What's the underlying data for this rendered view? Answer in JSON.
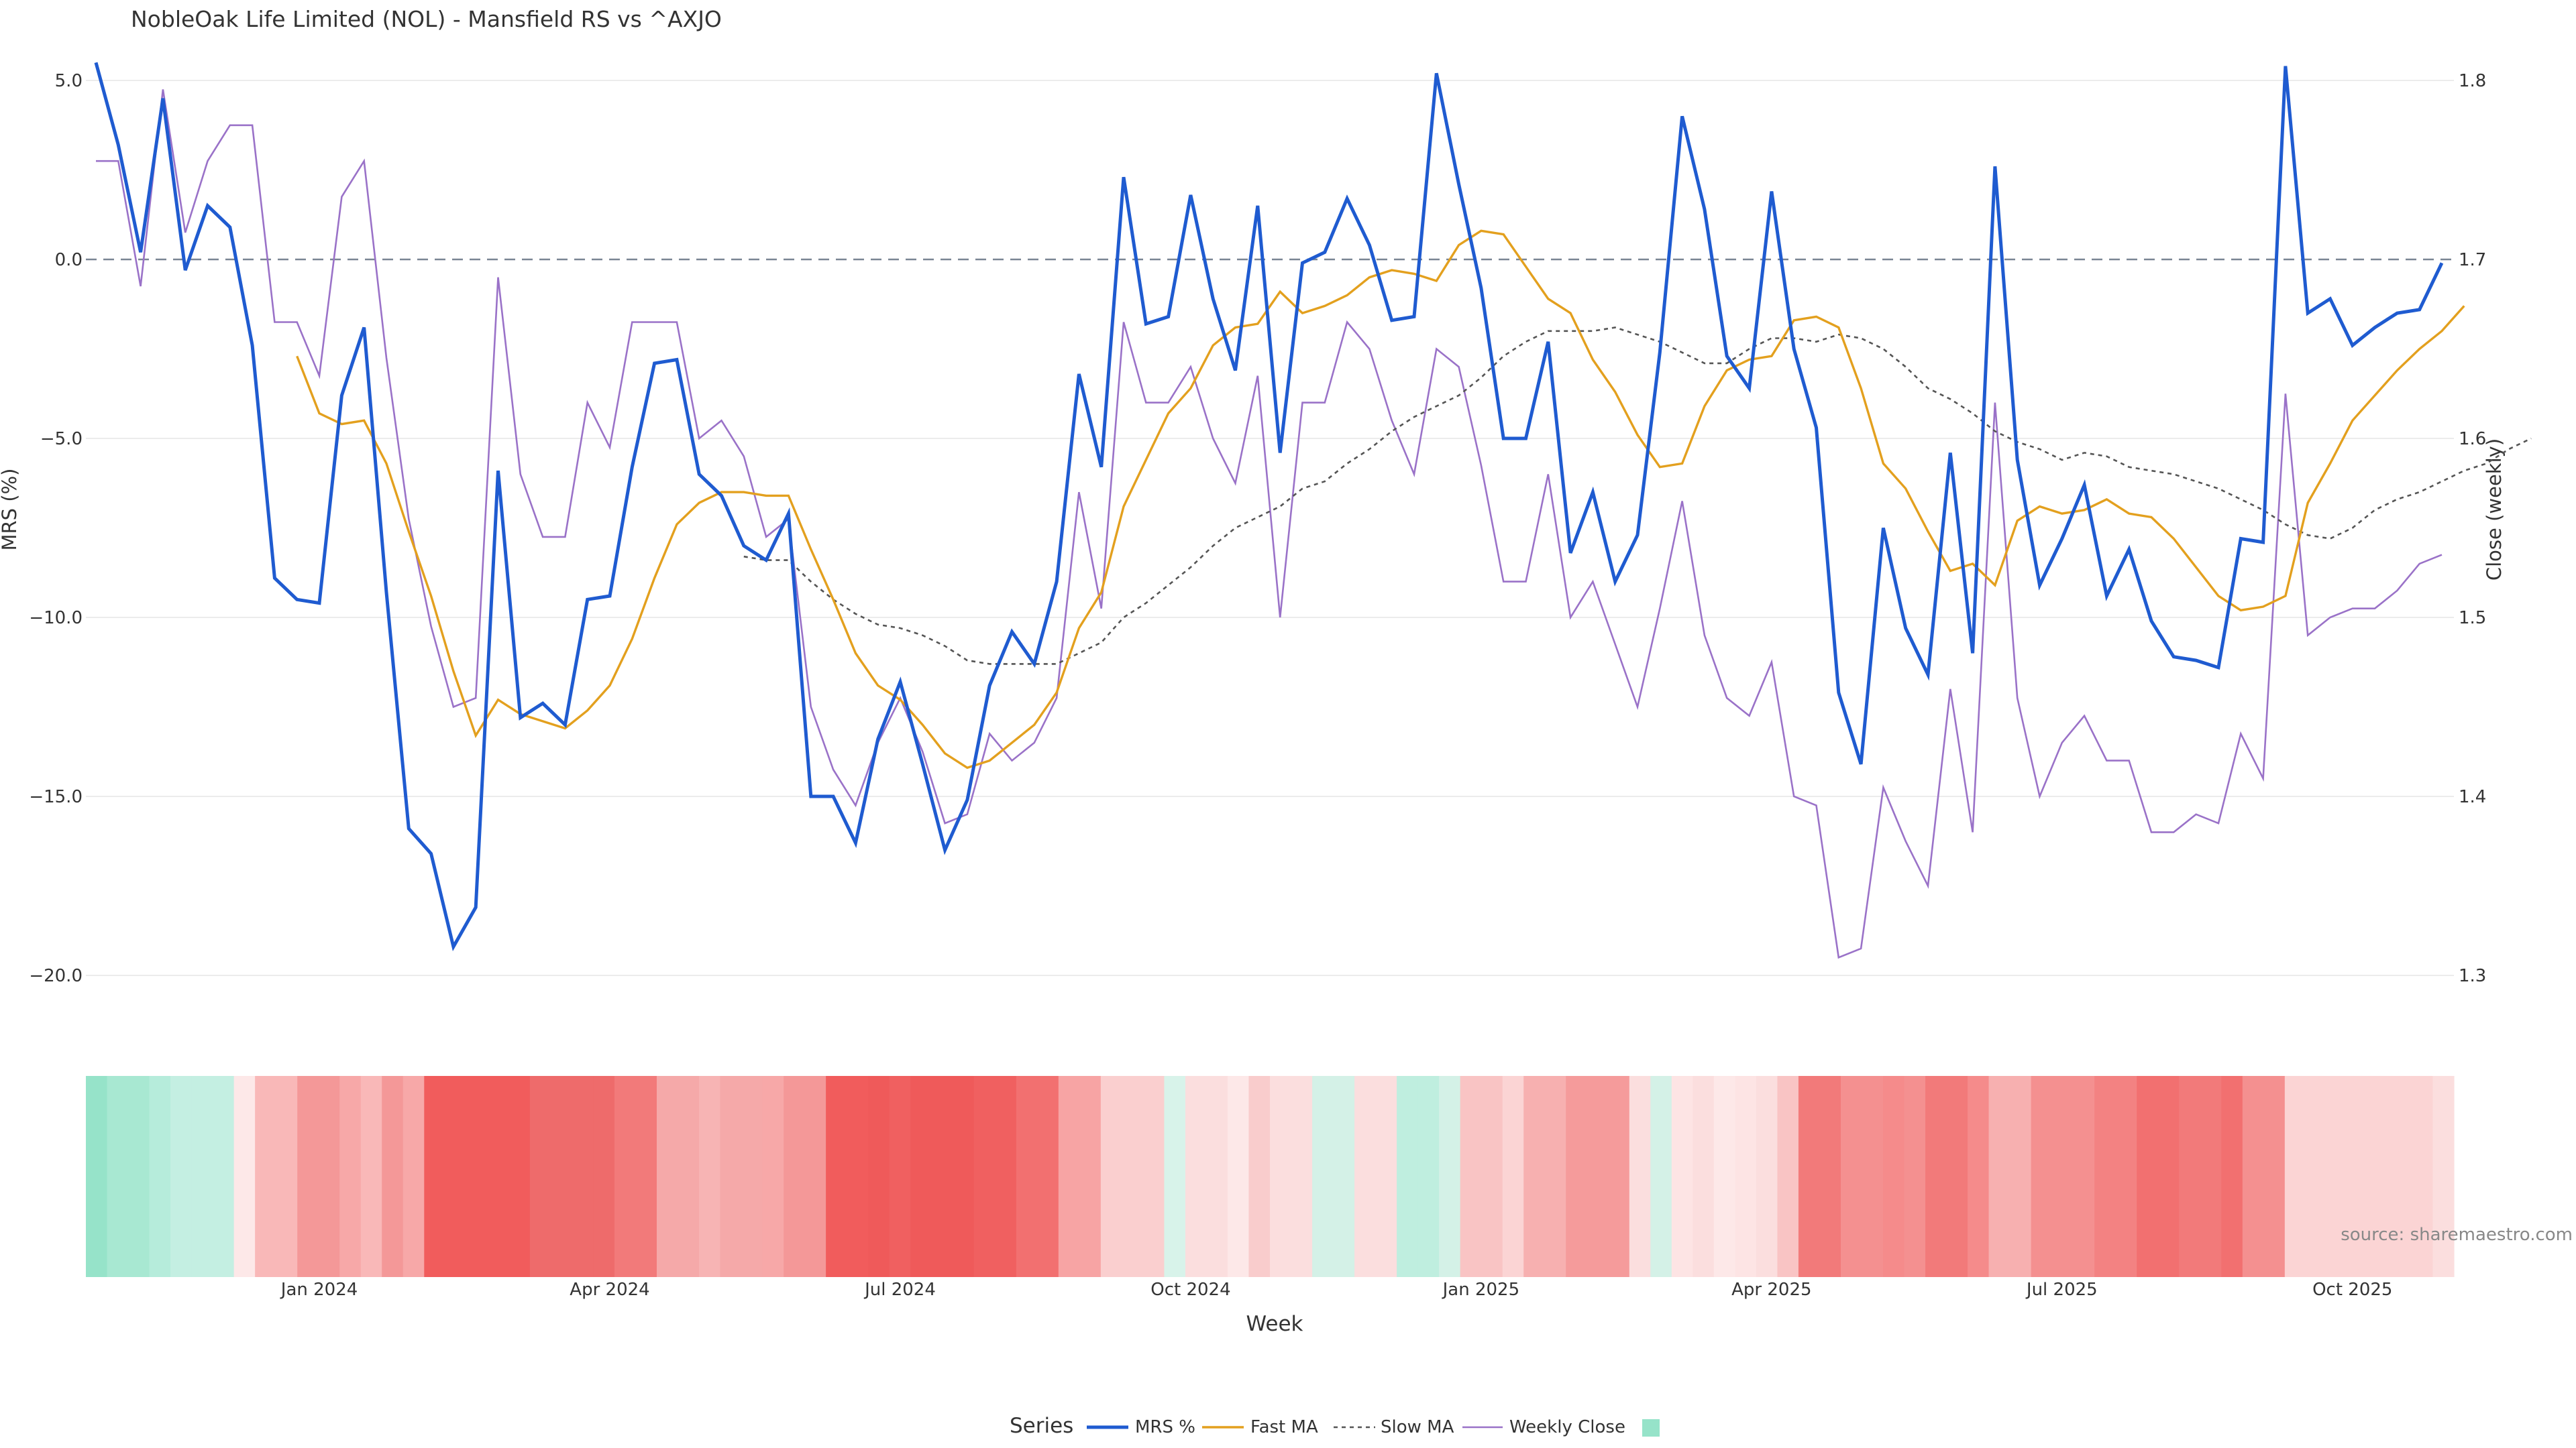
{
  "colors": {
    "mrs": "#1f5bd0",
    "fast": "#e3a01e",
    "slow": "#555555",
    "close": "#9a72c8",
    "zero": "#7a8594",
    "grid": "#ececec",
    "text": "#333333",
    "source": "#888888"
  },
  "chart_data": {
    "type": "line",
    "title": "NobleOak Life Limited (NOL) - Mansfield RS vs ^AXJO",
    "xlabel": "Week",
    "ylabel": "MRS (%)",
    "y2label": "Close (weekly)",
    "ylim": [
      -20.0,
      5.0
    ],
    "y2lim": [
      1.3,
      1.8
    ],
    "yticks": [
      "5.0",
      "0.0",
      "−5.0",
      "−10.0",
      "−15.0",
      "−20.0"
    ],
    "y2ticks": [
      "1.8",
      "1.7",
      "1.6",
      "1.5",
      "1.4",
      "1.3"
    ],
    "xticks": [
      "Jan 2024",
      "Apr 2024",
      "Jul 2024",
      "Oct 2024",
      "Jan 2025",
      "Apr 2025",
      "Jul 2025",
      "Oct 2025"
    ],
    "xtick_weeks": [
      10,
      23,
      36,
      49,
      62,
      75,
      88,
      101
    ],
    "zero_line": 0,
    "source": "source: sharemaestro.com",
    "legend_title": "Series",
    "legend": [
      "MRS %",
      "Fast MA",
      "Slow MA",
      "Weekly Close",
      ""
    ],
    "series": [
      {
        "name": "MRS %",
        "values": [
          5.5,
          3.2,
          0.2,
          4.5,
          -0.3,
          1.5,
          0.9,
          -2.4,
          -8.9,
          -9.5,
          -9.6,
          -3.8,
          -1.9,
          -9.3,
          -15.9,
          -16.6,
          -19.2,
          -18.1,
          -5.9,
          -12.8,
          -12.4,
          -13.0,
          -9.5,
          -9.4,
          -5.8,
          -2.9,
          -2.8,
          -6.0,
          -6.6,
          -8.0,
          -8.4,
          -7.1,
          -15.0,
          -15.0,
          -16.3,
          -13.4,
          -11.8,
          -14.1,
          -16.5,
          -15.1,
          -11.9,
          -10.4,
          -11.3,
          -9.0,
          -3.2,
          -5.8,
          2.3,
          -1.8,
          -1.6,
          1.8,
          -1.1,
          -3.1,
          1.5,
          -5.4,
          -0.1,
          0.2,
          1.7,
          0.4,
          -1.7,
          -1.6,
          5.2,
          2.1,
          -0.8,
          -5.0,
          -5.0,
          -2.3,
          -8.2,
          -6.5,
          -9.0,
          -7.7,
          -2.6,
          4.0,
          1.4,
          -2.7,
          -3.6,
          1.9,
          -2.5,
          -4.7,
          -12.1,
          -14.1,
          -7.5,
          -10.3,
          -11.6,
          -5.4,
          -11.0,
          2.6,
          -5.6,
          -9.1,
          -7.8,
          -6.3,
          -9.4,
          -8.1,
          -10.1,
          -11.1,
          -11.2,
          -11.4,
          -7.8,
          -7.9,
          5.4,
          -1.5,
          -1.1,
          -2.4,
          -1.9,
          -1.5,
          -1.4,
          -0.1
        ]
      },
      {
        "name": "Fast MA",
        "start": 9,
        "values": [
          -2.7,
          -4.3,
          -4.6,
          -4.5,
          -5.7,
          -7.6,
          -9.4,
          -11.5,
          -13.3,
          -12.3,
          -12.7,
          -12.9,
          -13.1,
          -12.6,
          -11.9,
          -10.6,
          -8.9,
          -7.4,
          -6.8,
          -6.5,
          -6.5,
          -6.6,
          -6.6,
          -8.1,
          -9.5,
          -11.0,
          -11.9,
          -12.3,
          -13.0,
          -13.8,
          -14.2,
          -14.0,
          -13.5,
          -13.0,
          -12.1,
          -10.3,
          -9.3,
          -6.9,
          -5.6,
          -4.3,
          -3.6,
          -2.4,
          -1.9,
          -1.8,
          -0.9,
          -1.5,
          -1.3,
          -1.0,
          -0.5,
          -0.3,
          -0.4,
          -0.6,
          0.4,
          0.8,
          0.7,
          -0.2,
          -1.1,
          -1.5,
          -2.8,
          -3.7,
          -4.9,
          -5.8,
          -5.7,
          -4.1,
          -3.1,
          -2.8,
          -2.7,
          -1.7,
          -1.6,
          -1.9,
          -3.6,
          -5.7,
          -6.4,
          -7.6,
          -8.7,
          -8.5,
          -9.1,
          -7.3,
          -6.9,
          -7.1,
          -7.0,
          -6.7,
          -7.1,
          -7.2,
          -7.8,
          -8.6,
          -9.4,
          -9.8,
          -9.7,
          -9.4,
          -6.8,
          -5.7,
          -4.5,
          -3.8,
          -3.1,
          -2.5,
          -2.0,
          -1.3
        ]
      },
      {
        "name": "Slow MA",
        "start": 29,
        "values": [
          -8.3,
          -8.4,
          -8.4,
          -9.0,
          -9.5,
          -9.9,
          -10.2,
          -10.3,
          -10.5,
          -10.8,
          -11.2,
          -11.3,
          -11.3,
          -11.3,
          -11.3,
          -11.0,
          -10.7,
          -10.0,
          -9.6,
          -9.1,
          -8.6,
          -8.0,
          -7.5,
          -7.2,
          -6.9,
          -6.4,
          -6.2,
          -5.7,
          -5.3,
          -4.8,
          -4.4,
          -4.1,
          -3.8,
          -3.3,
          -2.7,
          -2.3,
          -2.0,
          -2.0,
          -2.0,
          -1.9,
          -2.1,
          -2.3,
          -2.6,
          -2.9,
          -2.9,
          -2.5,
          -2.2,
          -2.2,
          -2.3,
          -2.1,
          -2.2,
          -2.5,
          -3.0,
          -3.6,
          -3.9,
          -4.3,
          -4.8,
          -5.1,
          -5.3,
          -5.6,
          -5.4,
          -5.5,
          -5.8,
          -5.9,
          -6.0,
          -6.2,
          -6.4,
          -6.7,
          -7.0,
          -7.4,
          -7.7,
          -7.8,
          -7.5,
          -7.0,
          -6.7,
          -6.5,
          -6.2,
          -5.9,
          -5.7,
          -5.3,
          -5.0
        ]
      },
      {
        "name": "Weekly Close",
        "axis": "right",
        "values": [
          1.755,
          1.755,
          1.685,
          1.795,
          1.715,
          1.755,
          1.775,
          1.775,
          1.665,
          1.665,
          1.635,
          1.735,
          1.755,
          1.645,
          1.555,
          1.495,
          1.45,
          1.455,
          1.69,
          1.58,
          1.545,
          1.545,
          1.62,
          1.595,
          1.665,
          1.665,
          1.665,
          1.6,
          1.61,
          1.59,
          1.545,
          1.555,
          1.45,
          1.415,
          1.395,
          1.43,
          1.455,
          1.425,
          1.385,
          1.39,
          1.435,
          1.42,
          1.43,
          1.455,
          1.57,
          1.505,
          1.665,
          1.62,
          1.62,
          1.64,
          1.6,
          1.575,
          1.635,
          1.5,
          1.62,
          1.62,
          1.665,
          1.65,
          1.61,
          1.58,
          1.65,
          1.64,
          1.585,
          1.52,
          1.52,
          1.58,
          1.5,
          1.52,
          1.485,
          1.45,
          1.505,
          1.565,
          1.49,
          1.455,
          1.445,
          1.475,
          1.4,
          1.395,
          1.31,
          1.315,
          1.405,
          1.375,
          1.35,
          1.46,
          1.38,
          1.62,
          1.455,
          1.4,
          1.43,
          1.445,
          1.42,
          1.42,
          1.38,
          1.38,
          1.39,
          1.385,
          1.435,
          1.41,
          1.625,
          1.49,
          1.5,
          1.505,
          1.505,
          1.515,
          1.53,
          1.535
        ]
      }
    ],
    "heatmap": {
      "colors": [
        "#96e3c9",
        "#a8e8d2",
        "#a8e8d2",
        "#b6ecdb",
        "#c4efe2",
        "#c4efe2",
        "#c4efe2",
        "#fde8e8",
        "#f9b8b8",
        "#f9b8b8",
        "#f49898",
        "#f49898",
        "#f7a8a8",
        "#f9b8b8",
        "#f49898",
        "#f7a8a8",
        "#f15c5c",
        "#f15c5c",
        "#f15c5c",
        "#f15c5c",
        "#f15c5c",
        "#ee6b6b",
        "#ee6b6b",
        "#ee6b6b",
        "#ee6b6b",
        "#f27a7a",
        "#f27a7a",
        "#f5a9a9",
        "#f5a9a9",
        "#f7b4b4",
        "#f5a9a9",
        "#f5a9a9",
        "#f7a8a8",
        "#f49898",
        "#f49898",
        "#f15c5c",
        "#f15c5c",
        "#ef5a5a",
        "#f06060",
        "#ef5a5a",
        "#ef5a5a",
        "#ef5a5a",
        "#f06060",
        "#f06060",
        "#f27070",
        "#f27070",
        "#f7a4a4",
        "#f7a4a4",
        "#facfcf",
        "#facfcf",
        "#facfcf",
        "#d8f3ea",
        "#fbdede",
        "#fbdede",
        "#fde8e8",
        "#f9cccc",
        "#fbdede",
        "#fbdede",
        "#d4f1e7",
        "#d4f1e7",
        "#fbdede",
        "#fbdede",
        "#bfeedf",
        "#bfeedf",
        "#d4f1e7",
        "#f9c4c4",
        "#f9c4c4",
        "#fbd4d4",
        "#f7b0b0",
        "#f7b0b0",
        "#f59b9b",
        "#f59b9b",
        "#f59b9b",
        "#fbdede",
        "#d4f1e7",
        "#fde4e4",
        "#fbdede",
        "#fde8e8",
        "#fde4e4",
        "#fbdede",
        "#f9c4c4",
        "#f27a7a",
        "#f27a7a",
        "#f49090",
        "#f49090",
        "#f58b8b",
        "#f49090",
        "#f27a7a",
        "#f27a7a",
        "#f58b8b",
        "#f7b0b0",
        "#f7b0b0",
        "#f49090",
        "#f49090",
        "#f49090",
        "#f38282",
        "#f38282",
        "#f27070",
        "#f27070",
        "#f27a7a",
        "#f27a7a",
        "#f27070",
        "#f49090",
        "#f49090",
        "#fbd4d4",
        "#fbd4d4",
        "#fbd4d4",
        "#fbd4d4",
        "#fbd4d4",
        "#fbd4d4",
        "#fbd4d4",
        "#fbdede"
      ]
    }
  }
}
